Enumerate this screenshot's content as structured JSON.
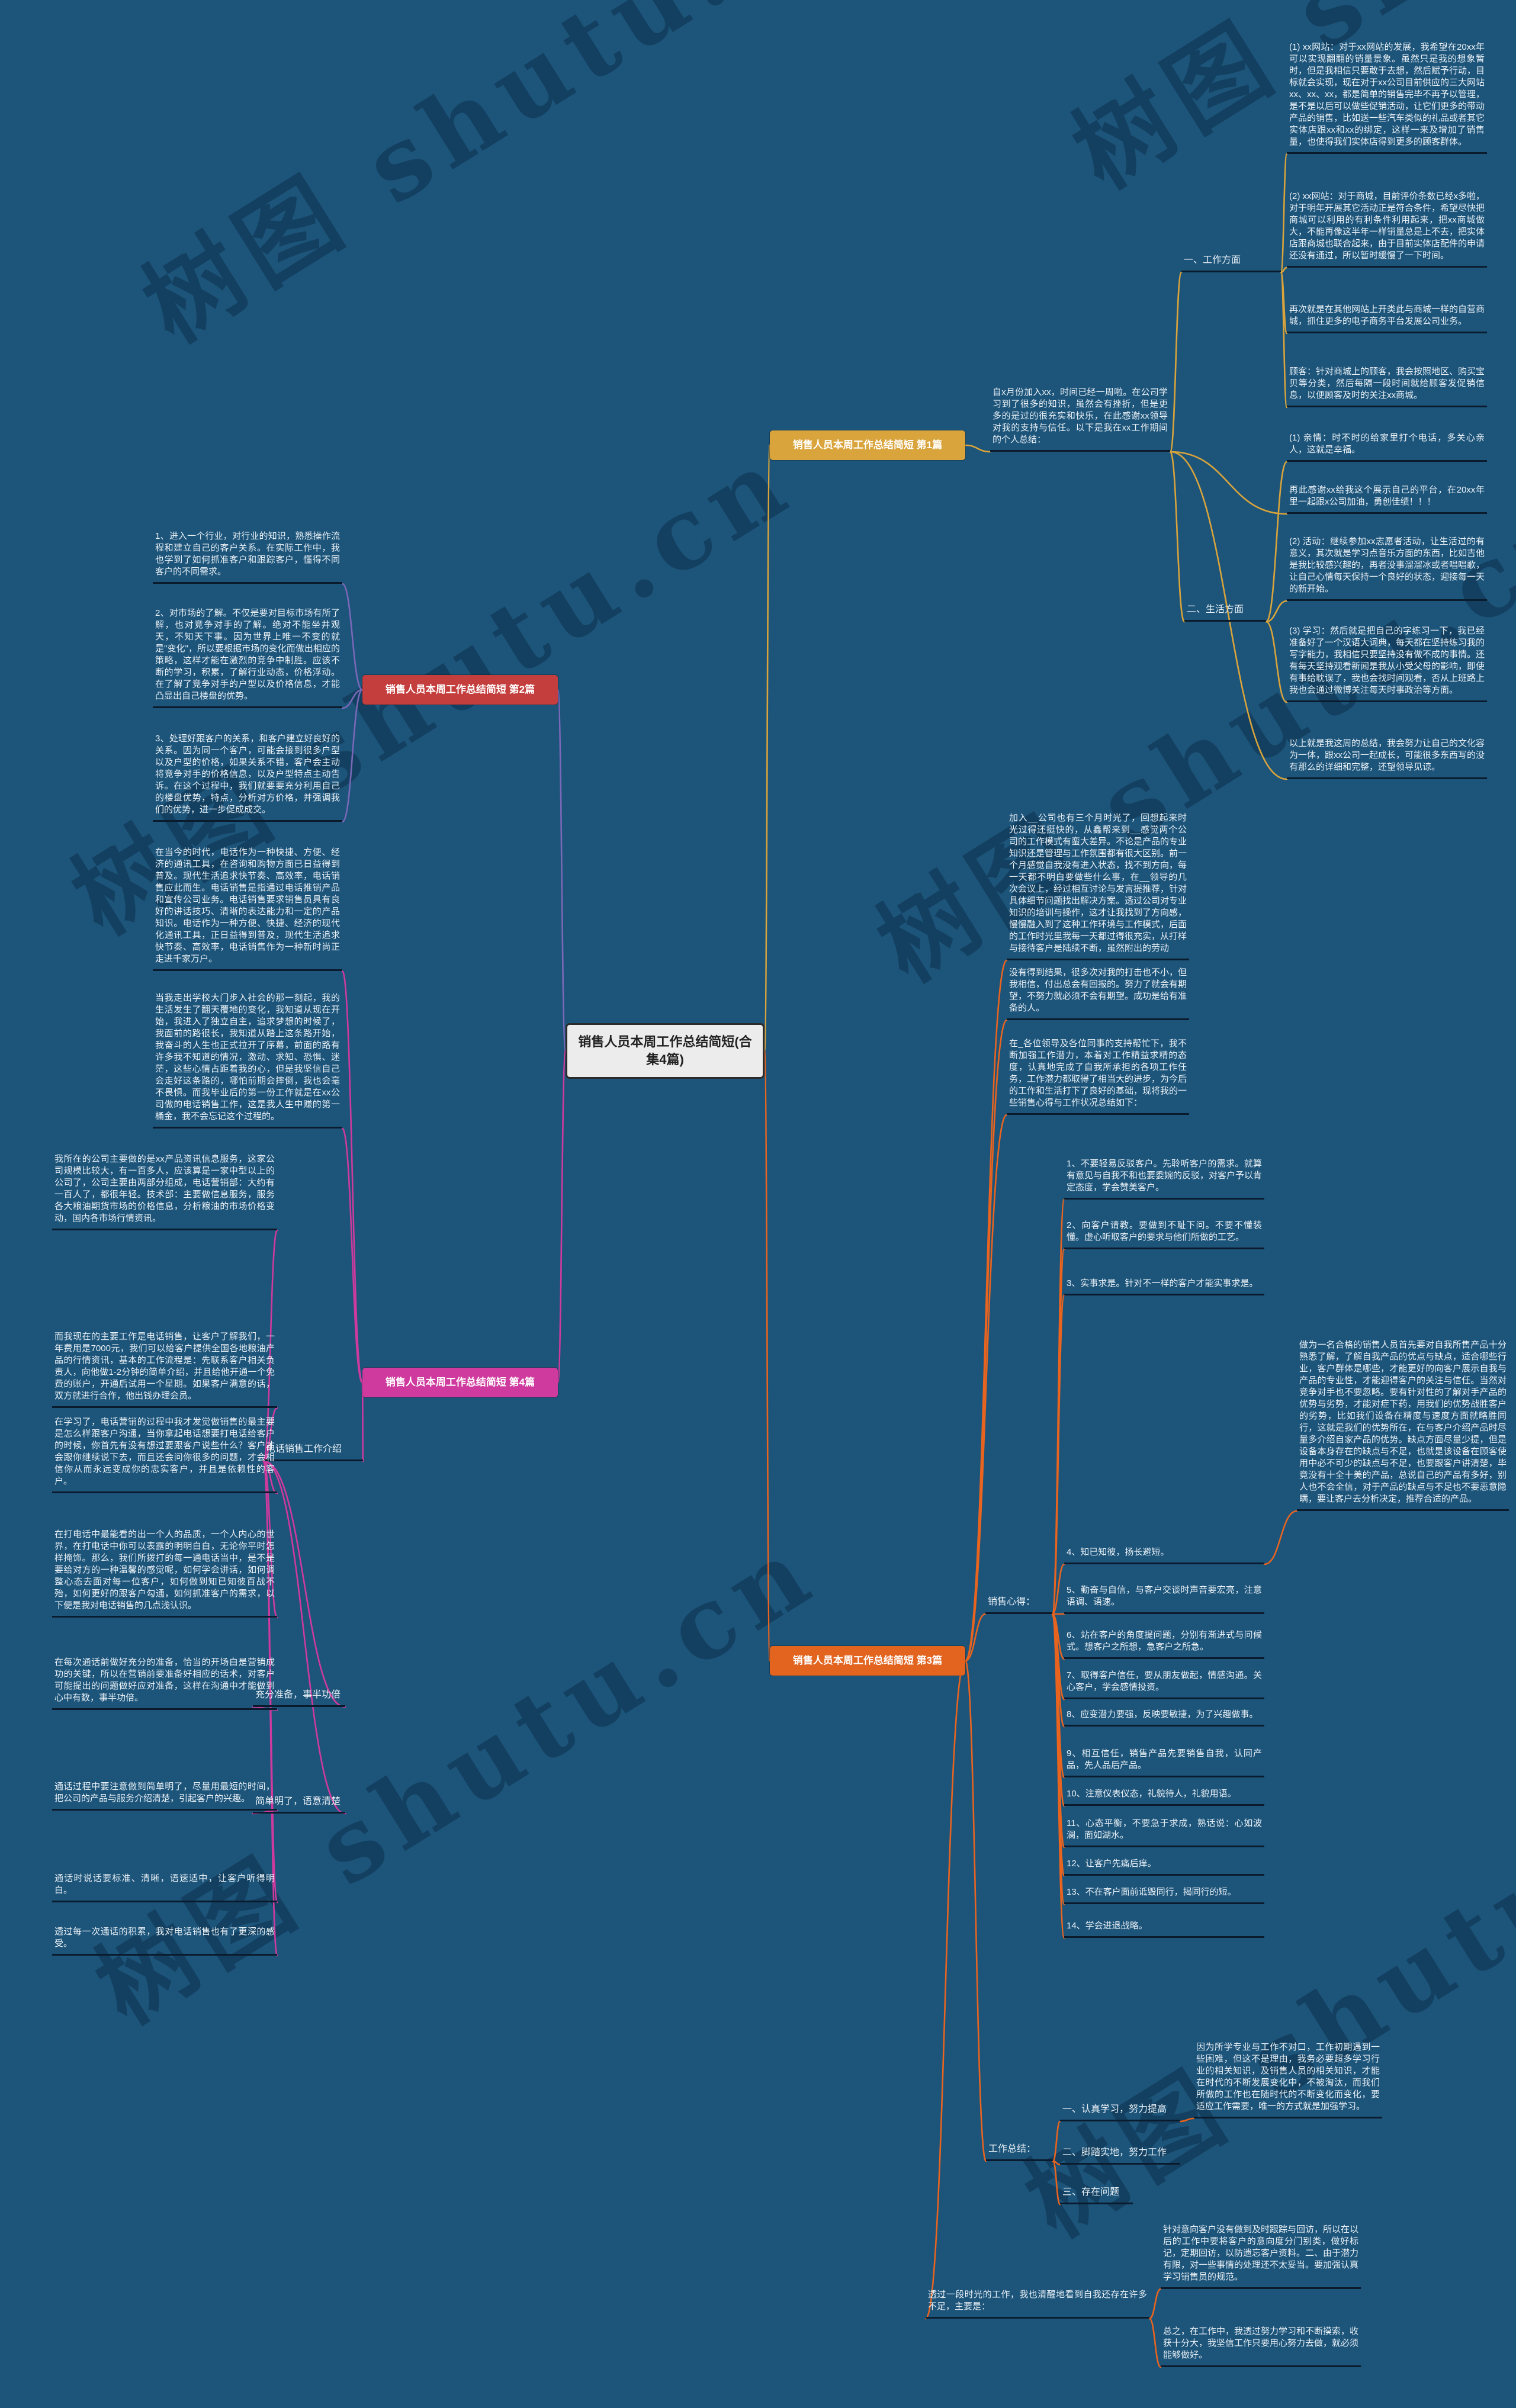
{
  "central": {
    "title": "销售人员本周工作总结简短(合集4篇)"
  },
  "watermark": "树图 shutu.cn",
  "colors": {
    "b1": "#d9a43b",
    "b2": "#7a68b8",
    "b3": "#e8641f",
    "b4": "#cf3a9e",
    "background": "#1d547a",
    "underline": "#0b1b2e",
    "box_b1": "#d9a43b",
    "box_b2": "#c53e3e",
    "box_b3": "#e2641f",
    "box_b4": "#cf3a9e"
  },
  "branch1": {
    "label": "销售人员本周工作总结简短 第1篇",
    "intro": "自x月份加入xx，时间已经一周啦。在公司学习到了很多的知识，虽然会有挫折，但是更多的是过的很充实和快乐，在此感谢xx领导对我的支持与信任。以下是我在xx工作期间的个人总结：",
    "work": {
      "label": "一、工作方面",
      "items": [
        "(1) xx网站：对于xx网站的发展，我希望在20xx年可以实现翻翻的销量景象。虽然只是我的想象暂时，但是我相信只要敢于去想，然后赋予行动，目标就会实现，现在对于xx公司目前供应的三大网站xx、xx、xx，都是简单的销售完毕不再予以管理，是不是以后可以做些促销活动，让它们更多的带动产品的销售，比如送一些汽车类似的礼品或者其它实体店跟xx和xx的绑定，这样一来及增加了销售量，也使得我们实体店得到更多的顾客群体。",
        "(2) xx网站：对于商城，目前评价条数已经x多啦，对于明年开展其它活动正是符合条件，希望尽快把商城可以利用的有利条件利用起来，把xx商城做大，不能再像这半年一样销量总是上不去，把实体店跟商城也联合起来，由于目前实体店配件的申请还没有通过，所以暂时缓慢了一下时间。",
        "再次就是在其他网站上开类此与商城一样的自营商城，抓住更多的电子商务平台发展公司业务。",
        "顾客：针对商城上的顾客，我会按照地区、购买宝贝等分类，然后每隔一段时间就给顾客发促销信息，以便顾客及时的关注xx商城。"
      ]
    },
    "life": {
      "label": "二、生活方面",
      "items": [
        "(1) 亲情：时不时的给家里打个电话，多关心亲人，这就是幸福。",
        "(2) 活动：继续参加xx志愿者活动，让生活过的有意义，其次就是学习点音乐方面的东西，比如吉他是我比较感兴趣的，再者没事溜溜冰或者唱唱歌，让自己心情每天保持一个良好的状态，迎接每一天的新开始。",
        "(3) 学习：然后就是把自己的字练习一下，我已经准备好了一个汉语大词典，每天都在坚持练习我的写字能力，我相信只要坚持没有做不成的事情。还有每天坚持观看新闻是我从小受父母的影响，即使有事给耽误了，我也会找时间观看，否从上班路上我也会通过微博关注每天时事政治等方面。"
      ]
    },
    "thanks": "再此感谢xx给我这个展示自己的平台，在20xx年里一起跟x公司加油，勇创佳绩！！！",
    "closing": "以上就是我这周的总结，我会努力让自己的文化容为一体，跟xx公司一起成长，可能很多东西写的没有那么的详细和完整，还望领导见谅。"
  },
  "branch2": {
    "label": "销售人员本周工作总结简短 第2篇",
    "items": [
      "1、进入一个行业，对行业的知识，熟悉操作流程和建立自己的客户关系。在实际工作中，我也学到了如何抓准客户和跟踪客户，懂得不同客户的不同需求。",
      "2、对市场的了解。不仅是要对目标市场有所了解，也对竞争对手的了解。绝对不能坐井观天，不知天下事。因为世界上唯一不变的就是\"变化\"，所以要根据市场的变化而做出相应的策略，这样才能在激烈的竞争中制胜。应该不断的学习，积累，了解行业动态，价格浮动。在了解了竞争对手的户型以及价格信息，才能凸显出自己楼盘的优势。",
      "3、处理好跟客户的关系，和客户建立好良好的关系。因为同一个客户，可能会接到很多户型以及户型的价格，如果关系不错，客户会主动将竞争对手的价格信息，以及户型特点主动告诉。在这个过程中，我们就要要充分利用自己的楼盘优势，特点，分析对方价格，并强调我们的优势，进一步促成成交。"
    ]
  },
  "branch3": {
    "label": "销售人员本周工作总结简短 第3篇",
    "intro": [
      "加入__公司也有三个月时光了，回想起来时光过得还挺快的，从鑫帮来到__感觉两个公司的工作模式有蛮大差异。不论是产品的专业知识还是管理与工作氛围都有很大区别。前一个月感觉自我没有进入状态，找不到方向，每一天都不明白要做些什么事，在__领导的几次会议上，经过相互讨论与发言提推荐，针对具体细节问题找出解决方案。透过公司对专业知识的培训与操作，这才让我找到了方向感，慢慢融入到了这种工作环境与工作模式，后面的工作时光里我每一天都过得很充实，从打样与接待客户是陆续不断，虽然附出的劳动",
      "没有得到结果，很多次对我的打击也不小，但我相信，付出总会有回报的。努力了就会有期望，不努力就必须不会有期望。成功是给有准备的人。",
      "在_各位领导及各位同事的支持帮忙下，我不断加强工作潜力，本着对工作精益求精的态度，认真地完成了自我所承担的各项工作任务，工作潜力都取得了相当大的进步，为今后的工作和生活打下了良好的基础，现将我的一些销售心得与工作状况总结如下："
    ],
    "tips_label": "销售心得：",
    "tips": [
      "1、不要轻易反驳客户。先聆听客户的需求。就算有意见与自我不和也要委婉的反驳，对客户予以肯定态度，学会赞美客户。",
      "2、向客户请教。要做到不耻下问。不要不懂装懂。虚心听取客户的要求与他们所做的工艺。",
      "3、实事求是。针对不一样的客户才能实事求是。",
      "4、知已知彼，扬长避短。",
      "5、勤奋与自信，与客户交谈时声音要宏亮，注意语调、语速。",
      "6、站在客户的角度提问题，分别有渐进式与问候式。想客户之所想，急客户之所急。",
      "7、取得客户信任，要从朋友做起，情感沟通。关心客户，学会感情投资。",
      "8、应变潜力要强，反映要敏捷，为了兴趣做事。",
      "9、相互信任，销售产品先要销售自我，认同产品，先人品后产品。",
      "10、注意仪表仪态，礼貌待人，礼貌用语。",
      "11、心态平衡，不要急于求成，熟话说：心如波澜，面如湖水。",
      "12、让客户先痛后痒。",
      "13、不在客户面前诋毁同行，揭同行的短。",
      "14、学会进退战略。"
    ],
    "tip4_detail": "做为一名合格的销售人员首先要对自我所售产品十分熟悉了解，了解自我产品的优点与缺点，适合哪些行业，客户群体是哪些，才能更好的向客户展示自我与产品的专业性，才能迎得客户的关注与信任。当然对竞争对手也不要忽略。要有针对性的了解对手产品的优势与劣势，才能对症下药，用我们的优势战胜客户的劣势，比如我们设备在精度与速度方面就略胜同行，这就是我们的优势所在，在与客户介绍产品时尽量多介绍自家产品的优势。缺点方面尽量少提，但是设备本身存在的缺点与不足，也就是该设备在顾客使用中必不可少的缺点与不足，也要跟客户讲清楚，毕竟没有十全十美的产品，总说自己的产品有多好，别人也不会全信，对于产品的缺点与不足也不要恶意隐瞒，要让客户去分析决定，推荐合适的产品。",
    "summary_label": "工作总结：",
    "summary": [
      "一、认真学习，努力提高",
      "二、脚踏实地，努力工作",
      "三、存在问题"
    ],
    "study_detail": "因为所学专业与工作不对口，工作初期遇到一些困难，但这不是理由，我务必要超多学习行业的相关知识，及销售人员的相关知识，才能在时代的不断发展变化中，不被淘汰，而我们所做的工作也在随时代的不断变化而变化，要适应工作需要，唯一的方式就是加强学习。",
    "shortcoming_intro": "透过一段时光的工作，我也清醒地看到自我还存在许多不足，主要是：",
    "shortcomings": [
      "针对意向客户没有做到及时跟踪与回访，所以在以后的工作中要将客户的意向度分门别类，做好标记，定期回访，以防遗忘客户资料。二、由于潜力有限，对一些事情的处理还不太妥当。要加强认真学习销售员的规范。",
      "总之，在工作中，我透过努力学习和不断摸索，收获十分大，我坚信工作只要用心努力去做，就必须能够做好。"
    ]
  },
  "branch4": {
    "label": "销售人员本周工作总结简短 第4篇",
    "intro_paras": [
      "在当今的时代，电话作为一种快捷、方便、经济的通讯工具，在咨询和购物方面已日益得到普及。现代生活追求快节奏、高效率，电话销售应此而生。电话销售是指通过电话推销产品和宣传公司业务。电话销售要求销售员具有良好的讲话技巧、清晰的表达能力和一定的产品知识。电话作为一种方便、快捷、经济的现代化通讯工具，正日益得到普及，现代生活追求快节奏、高效率，电话销售作为一种新时尚正走进千家万户。",
      "当我走出学校大门步入社会的那一刻起，我的生活发生了翻天覆地的变化，我知道从现在开始，我进入了独立自主，追求梦想的时候了，我面前的路很长，我知道从踏上这条路开始，我奋斗的人生也正式拉开了序幕，前面的路有许多我不知道的情况，激动、求知、恐惧、迷茫，这些心情占距着我的心，但是我坚信自己会走好这条路的，哪怕前期会摔倒，我也会毫不畏惧。而我毕业后的第一份工作就是在xx公司做的电话销售工作，这是我人生中赚的第一桶金，我不会忘记这个过程的。"
    ],
    "sub_label": "电话销售工作介绍",
    "sub_paras": [
      "我所在的公司主要做的是xx产品资讯信息服务，这家公司规模比较大，有一百多人，应该算是一家中型以上的公司了，公司主要由两部分组成，电话营销部：大约有一百人了，都很年轻。技术部：主要做信息服务，服务各大粮油期货市场的价格信息，分析粮油的市场价格变动，国内各市场行情资讯。",
      "而我现在的主要工作是电话销售，让客户了解我们，一年费用是7000元，我们可以给客户提供全国各地粮油产品的行情资讯，基本的工作流程是：先联系客户相关负责人，向他做1-2分钟的简单介绍，并且给他开通一个免费的账户，开通后试用一个星期。如果客户满意的话，双方就进行合作，他出钱办理会员。",
      "在学习了，电话营销的过程中我才发觉做销售的最主要是怎么样跟客户沟通，当你拿起电话想要打电话给客户的时候，你首先有没有想过要跟客户说些什么？客户才会跟你继续说下去，而且还会问你很多的问题，才会相信你从而永远变成你的忠实客户，并且是依赖性的客户。",
      "在打电话中最能看的出一个人的品质，一个人内心的世界，在打电话中你可以表露的明明白白，无论你平时怎样掩饰。那么，我们所拨打的每一通电话当中，是不是要给对方的一种温馨的感觉呢，如何学会讲话，如何调整心态去面对每一位客户，如何做到知已知彼百战不殆，如何更好的跟客户勾通，如何抓准客户的需求，以下便是我对电话销售的几点浅认识。"
    ],
    "prep": {
      "label": "充分准备，事半功倍",
      "detail": "在每次通话前做好充分的准备，恰当的开场白是营销成功的关键，所以在营销前要准备好相应的话术，对客户可能提出的问题做好应对准备，这样在沟通中才能做到心中有数，事半功倍。"
    },
    "brief": {
      "label": "简单明了，语意清楚",
      "detail": "通话过程中要注意做到简单明了，尽量用最短的时间，把公司的产品与服务介绍清楚，引起客户的兴趣。"
    },
    "extra": [
      "通话时说话要标准、清晰，语速适中，让客户听得明白。",
      "透过每一次通话的积累，我对电话销售也有了更深的感受。"
    ]
  }
}
